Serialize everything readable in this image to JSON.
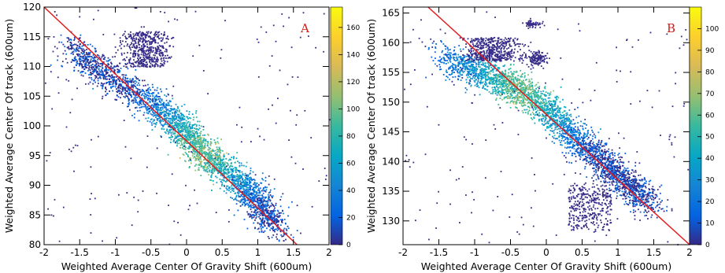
{
  "chart_data": [
    {
      "type": "heatmap",
      "panel_label": "A",
      "xlabel": "Weighted Average Center Of Gravity Shift (600um)",
      "ylabel": "Weighted Average Center Of track (600um)",
      "xlim": [
        -2,
        2
      ],
      "ylim": [
        80,
        120
      ],
      "x_ticks": [
        -2,
        -1.5,
        -1,
        -0.5,
        0,
        0.5,
        1,
        1.5,
        2
      ],
      "y_ticks": [
        80,
        85,
        90,
        95,
        100,
        105,
        110,
        115,
        120
      ],
      "colorbar": {
        "min": 0,
        "max": 175,
        "ticks": [
          0,
          20,
          40,
          60,
          80,
          100,
          120,
          140,
          160
        ]
      },
      "fit_line": {
        "x": [
          -2,
          1.55
        ],
        "y": [
          120,
          80
        ],
        "color": "#e31a1c"
      },
      "ridge_points": [
        [
          -1.6,
          113
        ],
        [
          -1.3,
          110
        ],
        [
          -0.9,
          107
        ],
        [
          -0.5,
          104
        ],
        [
          -0.2,
          101
        ],
        [
          0.0,
          98.5
        ],
        [
          0.2,
          96
        ],
        [
          0.4,
          93.5
        ],
        [
          0.7,
          91
        ],
        [
          0.9,
          89
        ],
        [
          1.05,
          86
        ],
        [
          1.2,
          83.5
        ]
      ],
      "upper_lobe": {
        "x": [
          -0.8,
          -0.4
        ],
        "y": [
          110,
          116
        ]
      },
      "peak": {
        "x": 0.2,
        "y": 96,
        "count": 175
      }
    },
    {
      "type": "heatmap",
      "panel_label": "B",
      "xlabel": "Weighted Average Center Of Gravity Shift (600um)",
      "ylabel": "Weighted Average Center Of track (600um)",
      "xlim": [
        -2,
        2
      ],
      "ylim": [
        126,
        166
      ],
      "x_ticks": [
        -2,
        -1.5,
        -1,
        -0.5,
        0,
        0.5,
        1,
        1.5,
        2
      ],
      "y_ticks": [
        130,
        135,
        140,
        145,
        150,
        155,
        160,
        165
      ],
      "colorbar": {
        "min": 0,
        "max": 110,
        "ticks": [
          0,
          10,
          20,
          30,
          40,
          50,
          60,
          70,
          80,
          90,
          100
        ]
      },
      "fit_line": {
        "x": [
          -1.65,
          2
        ],
        "y": [
          166,
          126
        ],
        "color": "#e31a1c"
      },
      "ridge_points": [
        [
          -1.4,
          157
        ],
        [
          -1.0,
          155.5
        ],
        [
          -0.6,
          153.5
        ],
        [
          -0.4,
          152
        ],
        [
          -0.1,
          150
        ],
        [
          0.2,
          146.5
        ],
        [
          0.5,
          143
        ],
        [
          0.8,
          140
        ],
        [
          1.0,
          137.5
        ],
        [
          1.2,
          135.5
        ],
        [
          1.4,
          133.5
        ]
      ],
      "upper_lobe": {
        "x": [
          -1.0,
          -0.5
        ],
        "y": [
          157,
          161
        ]
      },
      "top_cluster": {
        "x": -0.2,
        "y": 163.3
      },
      "side_cluster": {
        "x": -0.15,
        "y": 157.5
      },
      "lower_branch": {
        "x": [
          0.3,
          0.9
        ],
        "y": [
          129,
          136
        ]
      },
      "peak": {
        "x": -0.4,
        "y": 152,
        "count": 110
      }
    }
  ]
}
